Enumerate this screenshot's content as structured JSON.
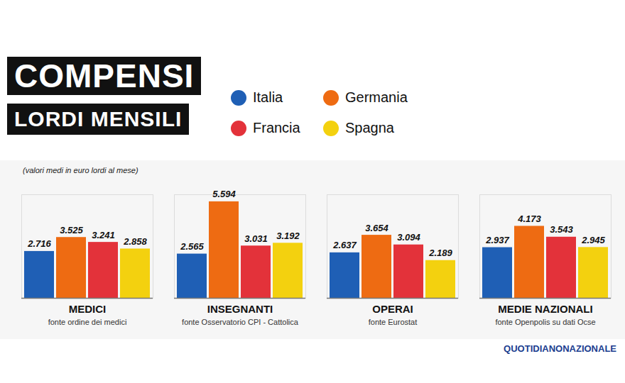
{
  "chart_data": {
    "type": "bar",
    "title": "COMPENSI",
    "subtitle": "LORDI MENSILI",
    "note": "(valori medi in euro lordi al mese)",
    "credit": "QUOTIDIANONAZIONALE",
    "categories": [
      "MEDICI",
      "INSEGNANTI",
      "OPERAI",
      "MEDIE NAZIONALI"
    ],
    "category_notes": [
      "fonte ordine dei medici",
      "fonte Osservatorio CPI - Cattolica",
      "fonte Eurostat",
      "fonte Openpolis su dati Ocse"
    ],
    "series": [
      {
        "name": "Italia",
        "color": "#1f5fb5",
        "values": [
          2716,
          2565,
          2637,
          2937
        ],
        "value_labels": [
          "2.716",
          "2.565",
          "2.637",
          "2.937"
        ]
      },
      {
        "name": "Germania",
        "color": "#ee6b12",
        "values": [
          3525,
          5594,
          3654,
          4173
        ],
        "value_labels": [
          "3.525",
          "5.594",
          "3.654",
          "4.173"
        ]
      },
      {
        "name": "Francia",
        "color": "#e3323a",
        "values": [
          3241,
          3031,
          3094,
          3543
        ],
        "value_labels": [
          "3.241",
          "3.031",
          "3.094",
          "3.543"
        ]
      },
      {
        "name": "Spagna",
        "color": "#f3d10f",
        "values": [
          2858,
          3192,
          2189,
          2945
        ],
        "value_labels": [
          "2.858",
          "3.192",
          "2.189",
          "2.945"
        ]
      }
    ],
    "ylim": [
      0,
      6000
    ],
    "yticks": [],
    "tick_labels": false,
    "data_labels": true,
    "legend": "top"
  }
}
